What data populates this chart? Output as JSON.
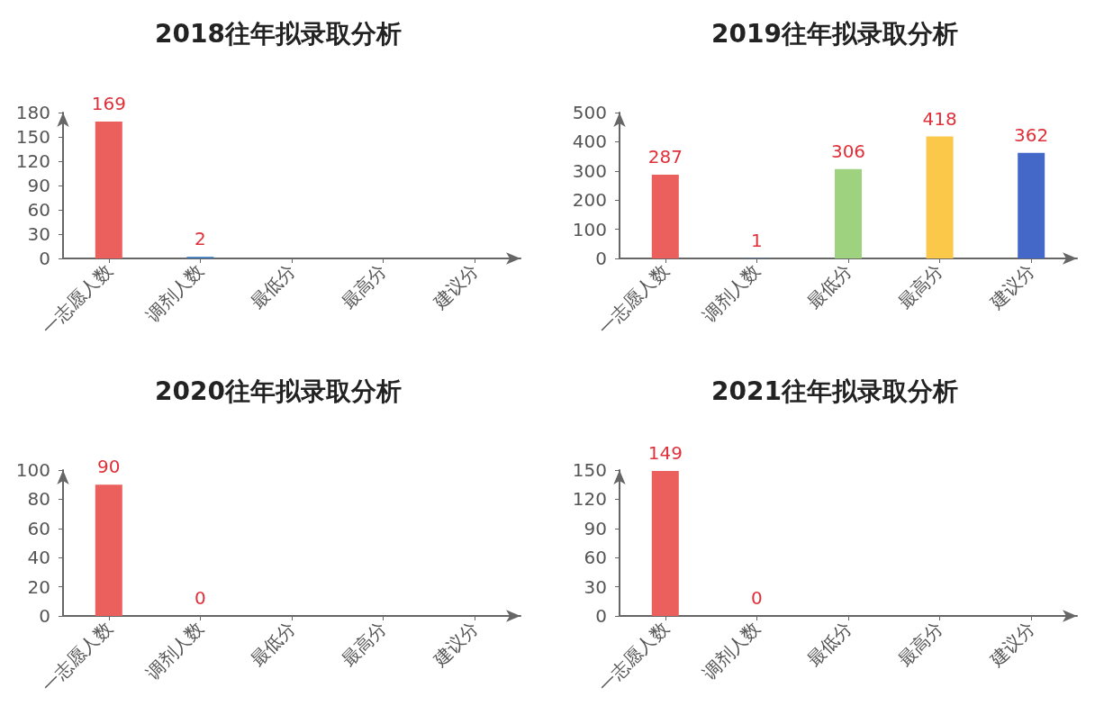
{
  "chart_data": [
    {
      "type": "bar",
      "title": "2018往年拟录取分析",
      "categories": [
        "一志愿人数",
        "调剂人数",
        "最低分",
        "最高分",
        "建议分"
      ],
      "values": [
        169,
        2,
        null,
        null,
        null
      ],
      "colors": [
        "#eb5f5c",
        "#3b78b8",
        "#9ed27f",
        "#fcc84a",
        "#4468c8"
      ],
      "ylim": [
        0,
        180
      ],
      "yticks": [
        0,
        30,
        60,
        90,
        120,
        150,
        180
      ],
      "data_labels": true
    },
    {
      "type": "bar",
      "title": "2019往年拟录取分析",
      "categories": [
        "一志愿人数",
        "调剂人数",
        "最低分",
        "最高分",
        "建议分"
      ],
      "values": [
        287,
        1,
        306,
        418,
        362
      ],
      "colors": [
        "#eb5f5c",
        "#3b78b8",
        "#9ed27f",
        "#fcc84a",
        "#4468c8"
      ],
      "ylim": [
        0,
        500
      ],
      "yticks": [
        0,
        100,
        200,
        300,
        400,
        500
      ],
      "data_labels": true
    },
    {
      "type": "bar",
      "title": "2020往年拟录取分析",
      "categories": [
        "一志愿人数",
        "调剂人数",
        "最低分",
        "最高分",
        "建议分"
      ],
      "values": [
        90,
        0,
        null,
        null,
        null
      ],
      "colors": [
        "#eb5f5c",
        "#3b78b8",
        "#9ed27f",
        "#fcc84a",
        "#4468c8"
      ],
      "ylim": [
        0,
        100
      ],
      "yticks": [
        0,
        20,
        40,
        60,
        80,
        100
      ],
      "data_labels": true
    },
    {
      "type": "bar",
      "title": "2021往年拟录取分析",
      "categories": [
        "一志愿人数",
        "调剂人数",
        "最低分",
        "最高分",
        "建议分"
      ],
      "values": [
        149,
        0,
        null,
        null,
        null
      ],
      "colors": [
        "#eb5f5c",
        "#3b78b8",
        "#9ed27f",
        "#fcc84a",
        "#4468c8"
      ],
      "ylim": [
        0,
        150
      ],
      "yticks": [
        0,
        30,
        60,
        90,
        120,
        150
      ],
      "data_labels": true
    }
  ]
}
